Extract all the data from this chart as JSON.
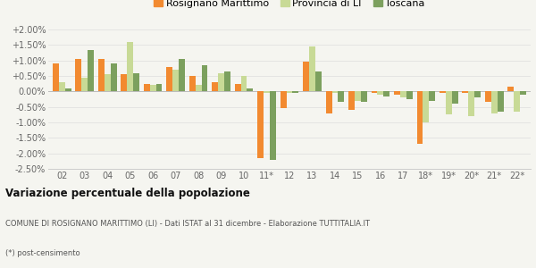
{
  "years": [
    "02",
    "03",
    "04",
    "05",
    "06",
    "07",
    "08",
    "09",
    "10",
    "11*",
    "12",
    "13",
    "14",
    "15",
    "16",
    "17",
    "18*",
    "19*",
    "20*",
    "21*",
    "22*"
  ],
  "rosignano": [
    0.9,
    1.05,
    1.05,
    0.57,
    0.25,
    0.8,
    0.5,
    0.3,
    0.25,
    -2.15,
    -0.55,
    0.95,
    -0.7,
    -0.6,
    -0.05,
    -0.1,
    -1.7,
    -0.05,
    -0.05,
    -0.35,
    0.15
  ],
  "provincia": [
    0.3,
    0.45,
    0.55,
    1.6,
    0.2,
    0.7,
    0.2,
    0.6,
    0.5,
    -0.05,
    -0.05,
    1.45,
    -0.05,
    -0.3,
    -0.1,
    -0.2,
    -1.0,
    -0.75,
    -0.8,
    -0.7,
    -0.65
  ],
  "toscana": [
    0.1,
    1.35,
    0.9,
    0.58,
    0.25,
    1.05,
    0.85,
    0.65,
    0.1,
    -2.2,
    -0.05,
    0.65,
    -0.35,
    -0.35,
    -0.15,
    -0.25,
    -0.3,
    -0.4,
    -0.2,
    -0.65,
    -0.1
  ],
  "color_rosignano": "#f28a30",
  "color_provincia": "#c8da96",
  "color_toscana": "#7ca05e",
  "title": "Variazione percentuale della popolazione",
  "subtitle": "COMUNE DI ROSIGNANO MARITTIMO (LI) - Dati ISTAT al 31 dicembre - Elaborazione TUTTITALIA.IT",
  "footnote": "(*) post-censimento",
  "ylim_min": -2.5,
  "ylim_max": 2.0,
  "yticks": [
    -2.5,
    -2.0,
    -1.5,
    -1.0,
    -0.5,
    0.0,
    0.5,
    1.0,
    1.5,
    2.0
  ],
  "ytick_labels": [
    "-2.50%",
    "-2.00%",
    "-1.50%",
    "-1.00%",
    "-0.50%",
    "0.00%",
    "+0.50%",
    "+1.00%",
    "+1.50%",
    "+2.00%"
  ],
  "bg_color": "#f5f5f0",
  "legend_labels": [
    "Rosignano Marittimo",
    "Provincia di LI",
    "Toscana"
  ]
}
